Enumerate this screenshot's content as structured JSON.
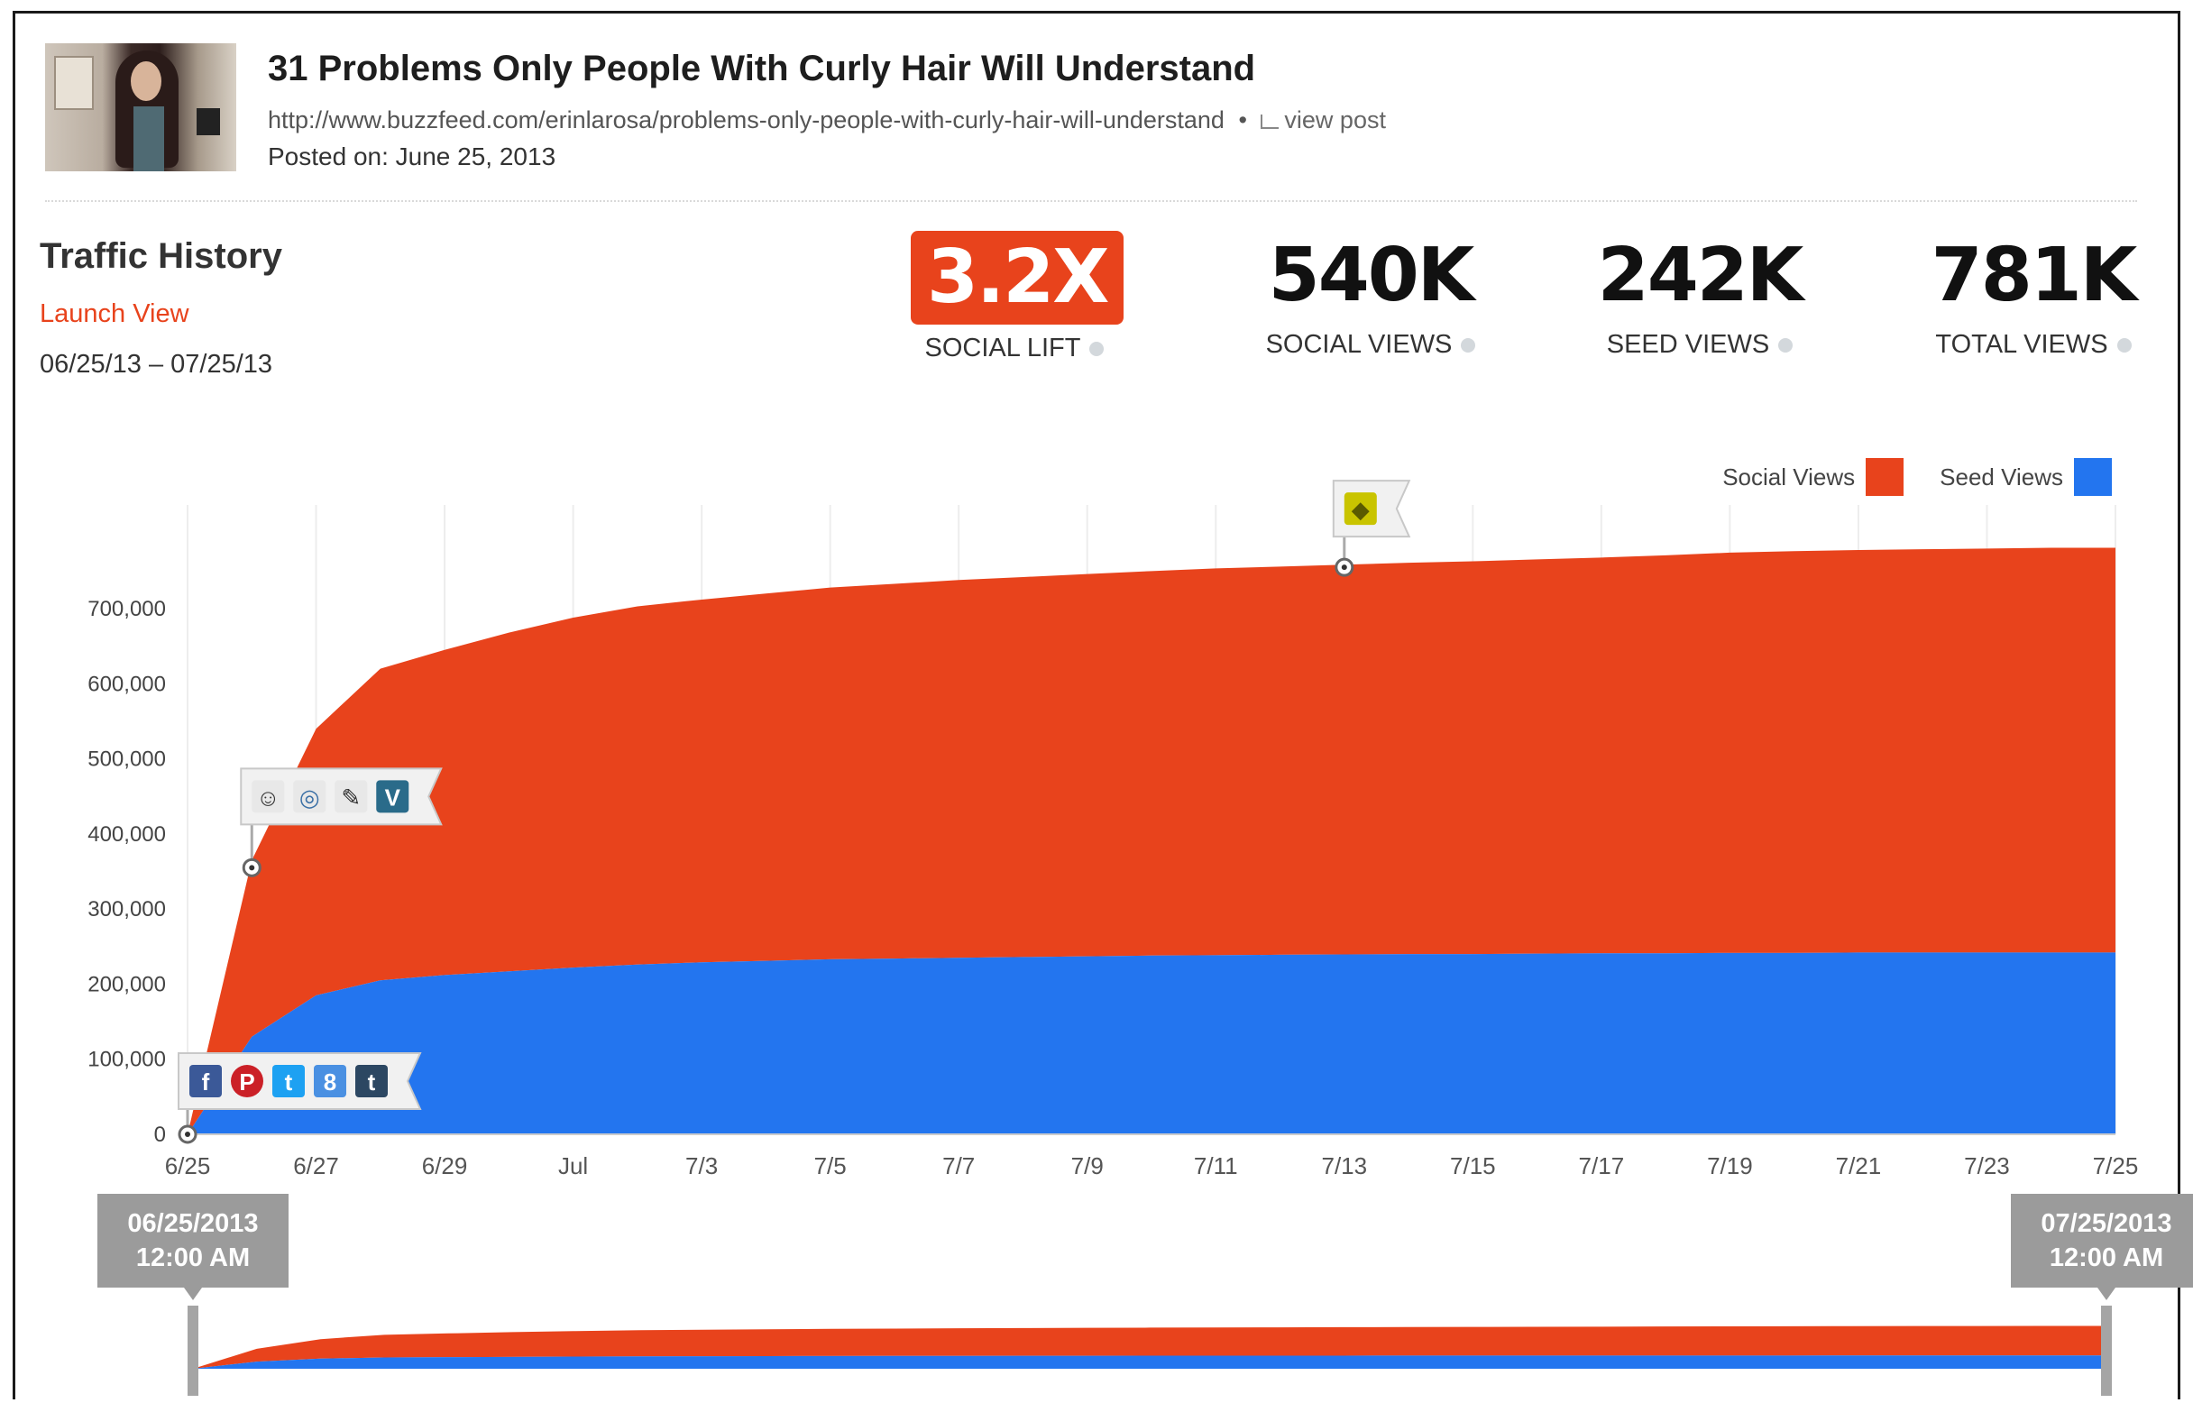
{
  "post": {
    "title": "31 Problems Only People With Curly Hair Will Understand",
    "url": "http://www.buzzfeed.com/erinlarosa/problems-only-people-with-curly-hair-will-understand",
    "url_separator": "•",
    "view_post_label": "view post",
    "posted_on": "Posted on: June 25, 2013"
  },
  "traffic": {
    "title": "Traffic History",
    "launch_view_label": "Launch View",
    "date_range": "06/25/13 – 07/25/13"
  },
  "stats": [
    {
      "value": "3.2X",
      "label": "SOCIAL LIFT",
      "highlight": true
    },
    {
      "value": "540K",
      "label": "SOCIAL VIEWS"
    },
    {
      "value": "242K",
      "label": "SEED VIEWS"
    },
    {
      "value": "781K",
      "label": "TOTAL VIEWS"
    }
  ],
  "colors": {
    "social": "#e8431c",
    "seed": "#2375ef",
    "accent": "#e8431c"
  },
  "range": {
    "start_date": "06/25/2013",
    "start_time": "12:00 AM",
    "end_date": "07/25/2013",
    "end_time": "12:00 AM"
  },
  "markers": [
    {
      "day": 0,
      "value": 0,
      "icons": [
        "facebook-icon",
        "pinterest-icon",
        "twitter-icon",
        "google-plus-icon",
        "tumblr-icon"
      ]
    },
    {
      "day": 1,
      "value": 355000,
      "icons": [
        "reddit-icon",
        "globe-icon",
        "pencil-icon",
        "vine-icon"
      ]
    },
    {
      "day": 18,
      "value": 755000,
      "icons": [
        "flag-badge-icon"
      ]
    }
  ],
  "chart_data": {
    "type": "area",
    "stacked": true,
    "title": "",
    "xlabel": "",
    "ylabel": "",
    "x_ticks": [
      "6/25",
      "6/27",
      "6/29",
      "Jul",
      "7/3",
      "7/5",
      "7/7",
      "7/9",
      "7/11",
      "7/13",
      "7/15",
      "7/17",
      "7/19",
      "7/21",
      "7/23",
      "7/25"
    ],
    "y_ticks": [
      "0",
      "100,000",
      "200,000",
      "300,000",
      "400,000",
      "500,000",
      "600,000",
      "700,000"
    ],
    "ylim": [
      0,
      790000
    ],
    "x": [
      0,
      1,
      2,
      3,
      4,
      5,
      6,
      7,
      8,
      9,
      10,
      11,
      12,
      13,
      14,
      15,
      16,
      17,
      18,
      19,
      20,
      21,
      22,
      23,
      24,
      25,
      26,
      27,
      28,
      29,
      30
    ],
    "series": [
      {
        "name": "Seed Views",
        "values": [
          0,
          130000,
          185000,
          205000,
          212000,
          217000,
          222000,
          226000,
          229000,
          231000,
          233000,
          234000,
          235000,
          236000,
          237000,
          238000,
          238500,
          239000,
          239500,
          240000,
          240000,
          240500,
          241000,
          241000,
          241500,
          241500,
          242000,
          242000,
          242000,
          242000,
          242000
        ]
      },
      {
        "name": "Social Views",
        "values": [
          0,
          235000,
          355000,
          415000,
          433000,
          451000,
          466000,
          477000,
          483000,
          489000,
          495000,
          499000,
          503000,
          506000,
          509000,
          512000,
          515000,
          517000,
          519000,
          521000,
          523000,
          525000,
          527000,
          530000,
          533000,
          535000,
          536000,
          537000,
          538000,
          539000,
          539000
        ]
      }
    ],
    "legend": [
      "Social Views",
      "Seed Views"
    ],
    "legend_position": "top-right",
    "grid": true
  }
}
